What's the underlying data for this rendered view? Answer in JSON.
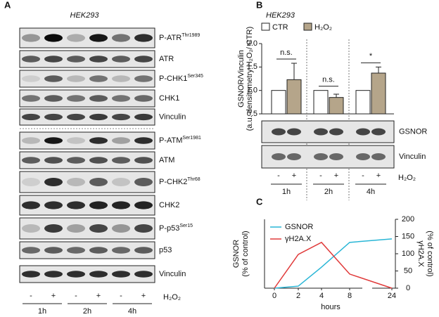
{
  "panel_a": {
    "letter": "A",
    "title": "HEK293",
    "rows": [
      {
        "name": "P-ATR",
        "site": "Thr1989"
      },
      {
        "name": "ATR"
      },
      {
        "name": "P-CHK1",
        "site": "Ser345"
      },
      {
        "name": "CHK1"
      },
      {
        "name": "Vinculin"
      },
      {
        "name": "P-ATM",
        "site": "Ser1981"
      },
      {
        "name": "ATM"
      },
      {
        "name": "P-CHK2",
        "site": "Thr68"
      },
      {
        "name": "CHK2"
      },
      {
        "name": "P-p53",
        "site": "Ser15"
      },
      {
        "name": "p53"
      },
      {
        "name": "Vinculin"
      }
    ],
    "lanes": [
      "-",
      "+",
      "-",
      "+",
      "-",
      "+"
    ],
    "treatment": "H₂O₂",
    "times": [
      "1h",
      "2h",
      "4h"
    ]
  },
  "chart_data": [
    {
      "type": "bar",
      "letter": "B",
      "title": "HEK293",
      "y_label": [
        "GSNOR/Vinculin",
        "(a.u. densitometry H₂O₂/ CTR)"
      ],
      "categories": [
        "1h",
        "2h",
        "4h"
      ],
      "series": [
        {
          "name": "CTR",
          "color": "#ffffff",
          "values": [
            1,
            1,
            1
          ]
        },
        {
          "name": "H₂O₂",
          "color": "#b5a58a",
          "values": [
            1.23,
            0.85,
            1.37
          ],
          "errors": [
            0.35,
            0.07,
            0.13
          ]
        }
      ],
      "annotations": [
        "n.s.",
        "n.s.",
        "*"
      ],
      "ylim": [
        0.5,
        2.0
      ],
      "yticks": [
        {
          "value": 0.5,
          "label": "0.5"
        },
        {
          "value": 1,
          "label": "1.0"
        },
        {
          "value": 1.5,
          "label": "1.5"
        },
        {
          "value": 2,
          "label": "2.0"
        }
      ],
      "blot_labels": [
        "GSNOR",
        "Vinculin"
      ],
      "lanes": [
        "-",
        "+",
        "-",
        "+",
        "-",
        "+"
      ],
      "treatment": "H₂O₂"
    },
    {
      "type": "line",
      "letter": "C",
      "x_label": "hours",
      "y_label": [
        "GSNOR",
        "(% of control)"
      ],
      "y2_label": [
        "γH2A.X",
        "(% of control)"
      ],
      "x": [
        0,
        2,
        4,
        8,
        24
      ],
      "xticks": [
        0,
        2,
        4,
        8,
        24
      ],
      "series": [
        {
          "name": "GSNOR",
          "color": "#29b6d6",
          "values": [
            0,
            6,
            61,
            133,
            143
          ]
        },
        {
          "name": "γH2A.X",
          "color": "#e03a3a",
          "axis": "y2",
          "values": [
            0,
            98,
            133,
            41,
            0
          ]
        }
      ],
      "ylim": [
        0,
        200
      ],
      "y2lim": [
        0,
        200
      ],
      "y2ticks": [
        0,
        50,
        100,
        150,
        200
      ]
    }
  ]
}
